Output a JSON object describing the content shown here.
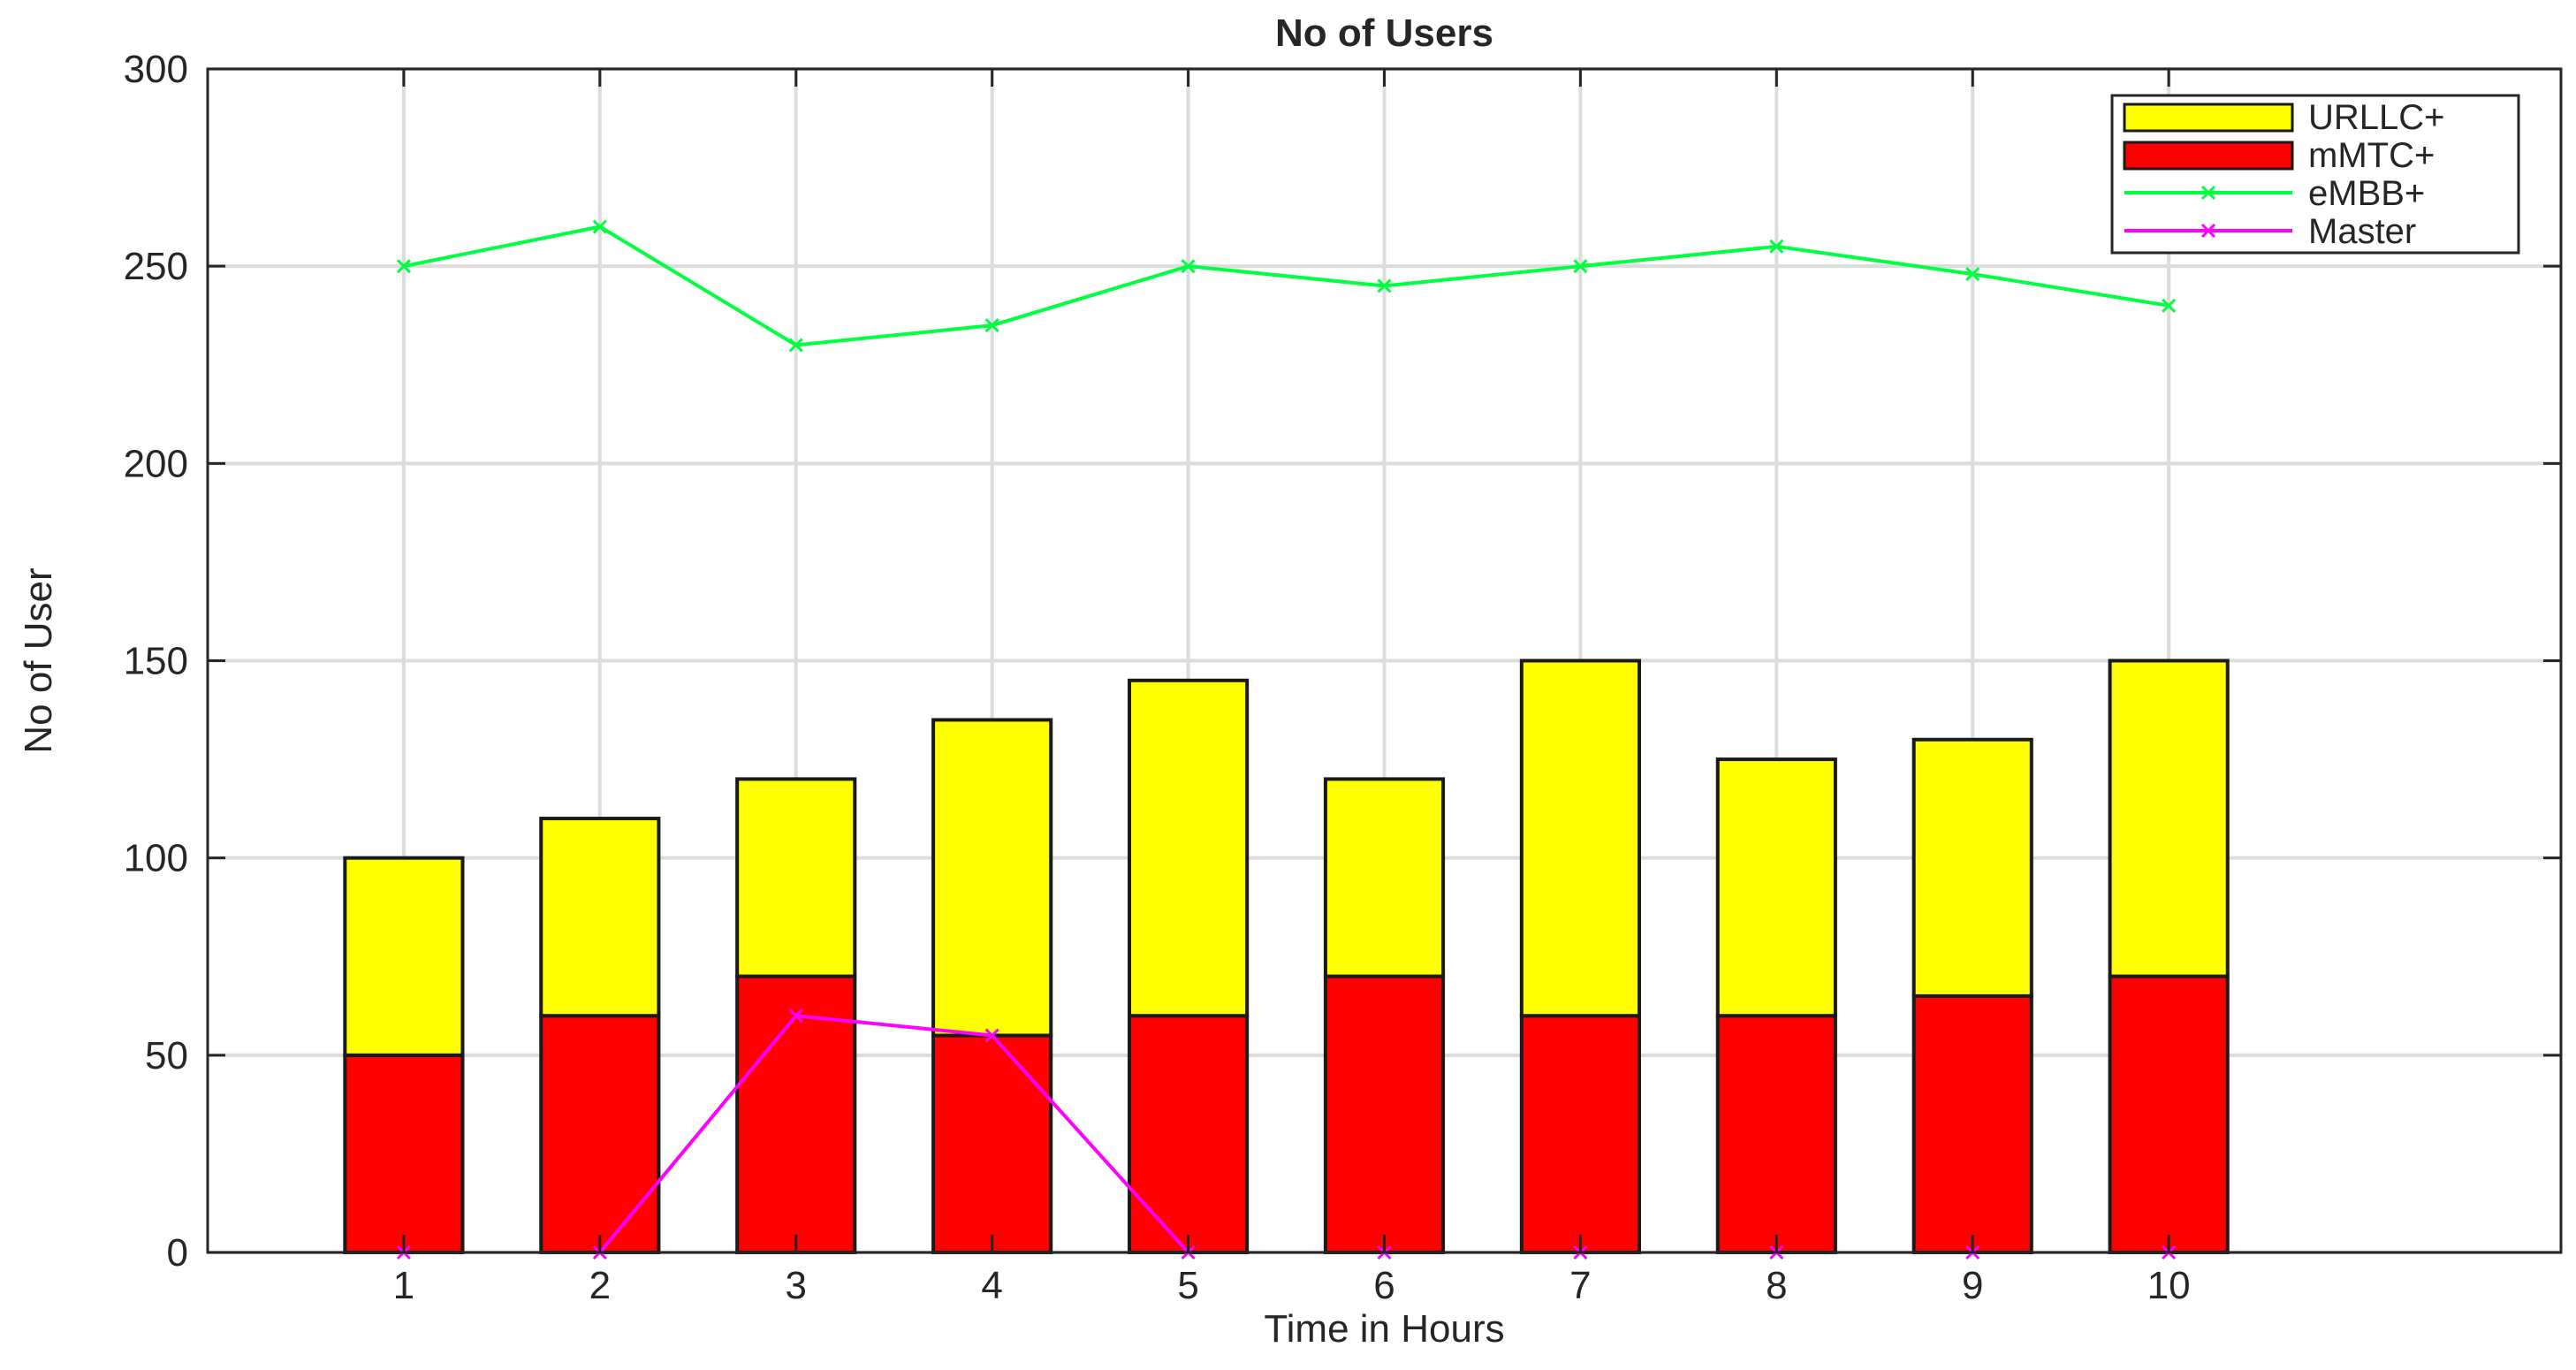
{
  "chart_data": {
    "type": "bar",
    "stacked": true,
    "title": "No of Users",
    "xlabel": "Time in Hours",
    "ylabel": "No of User",
    "xlim": [
      0,
      12
    ],
    "ylim": [
      0,
      300
    ],
    "x": [
      1,
      2,
      3,
      4,
      5,
      6,
      7,
      8,
      9,
      10
    ],
    "x_ticks": [
      "1",
      "2",
      "3",
      "4",
      "5",
      "6",
      "7",
      "8",
      "9",
      "10"
    ],
    "y_ticks": [
      "0",
      "50",
      "100",
      "150",
      "200",
      "250",
      "300"
    ],
    "y_tick_values": [
      0,
      50,
      100,
      150,
      200,
      250,
      300
    ],
    "grid": true,
    "legend_position": "top-right",
    "bar_series": [
      {
        "name": "mMTC+",
        "color": "#ff0000",
        "values": [
          50,
          60,
          70,
          55,
          60,
          70,
          60,
          60,
          65,
          70
        ]
      },
      {
        "name": "URLLC+",
        "color": "#ffff00",
        "values": [
          50,
          50,
          50,
          80,
          85,
          50,
          90,
          65,
          65,
          80
        ]
      }
    ],
    "line_series": [
      {
        "name": "eMBB+",
        "color": "#00ff40",
        "marker": "x",
        "values": [
          250,
          260,
          230,
          235,
          250,
          245,
          250,
          255,
          248,
          240
        ]
      },
      {
        "name": "Master",
        "color": "#ff00ff",
        "marker": "x",
        "values": [
          0,
          0,
          60,
          55,
          0,
          0,
          0,
          0,
          0,
          0
        ]
      }
    ],
    "legend": [
      {
        "name": "URLLC+",
        "kind": "bar",
        "color": "#ffff00"
      },
      {
        "name": "mMTC+",
        "kind": "bar",
        "color": "#ff0000"
      },
      {
        "name": "eMBB+",
        "kind": "line",
        "color": "#00ff40"
      },
      {
        "name": "Master",
        "kind": "line",
        "color": "#ff00ff"
      }
    ]
  }
}
